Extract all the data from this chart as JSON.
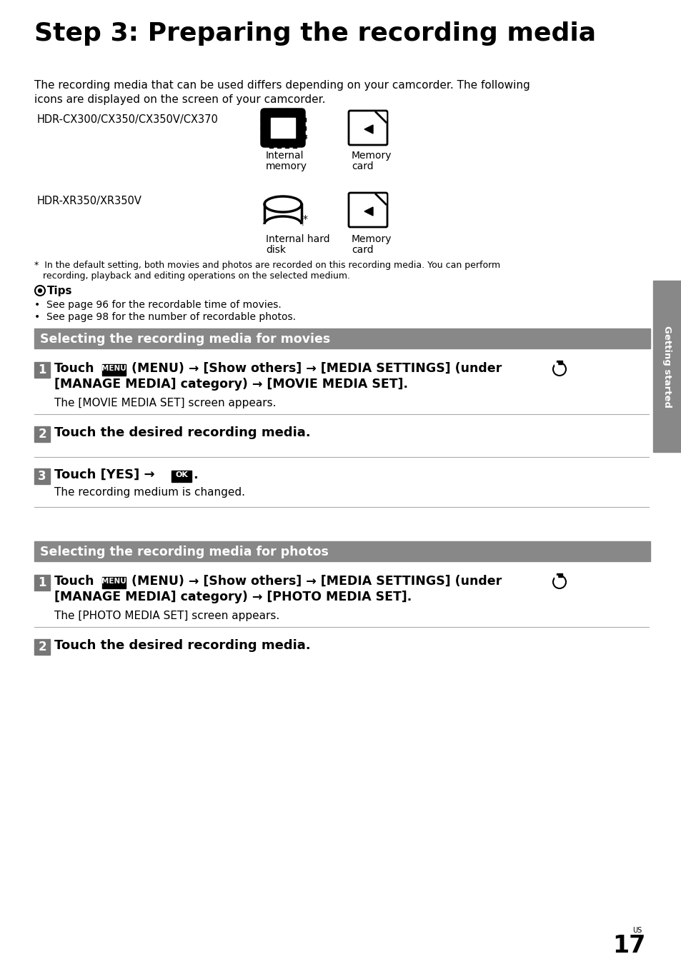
{
  "title": "Step 3: Preparing the recording media",
  "bg_color": "#ffffff",
  "sidebar_color": "#888888",
  "header_bg": "#888888",
  "header_text_color": "#ffffff",
  "body_text_color": "#000000",
  "page_number": "17",
  "sidebar_label": "Getting started",
  "intro1": "The recording media that can be used differs depending on your camcorder. The following",
  "intro2": "icons are displayed on the screen of your camcorder.",
  "hdr1_label": "HDR-CX300/CX350/CX350V/CX370",
  "hdr2_label": "HDR-XR350/XR350V",
  "icon1_label1": "Internal",
  "icon1_label2": "memory",
  "icon2_label1": "Memory",
  "icon2_label2": "card",
  "icon3_label1": "Internal hard",
  "icon3_label2": "disk",
  "footnote1": "*  In the default setting, both movies and photos are recorded on this recording media. You can perform",
  "footnote2": "recording, playback and editing operations on the selected medium.",
  "tips_title": "Tips",
  "tip1": "•  See page 96 for the recordable time of movies.",
  "tip2": "•  See page 98 for the number of recordable photos.",
  "section1": "Selecting the recording media for movies",
  "section2": "Selecting the recording media for photos",
  "s1_step1_line1": "Touch  (MENU) → [Show others] → [MEDIA SETTINGS] (under",
  "s1_step1_line2": "[MANAGE MEDIA] category) → [MOVIE MEDIA SET].",
  "s1_step1_sub": "The [MOVIE MEDIA SET] screen appears.",
  "s1_step2": "Touch the desired recording media.",
  "s1_step3_pre": "Touch [YES] →",
  "s1_step3_post": ".",
  "s1_step3_sub": "The recording medium is changed.",
  "s2_step1_line1": "Touch  (MENU) → [Show others] → [MEDIA SETTINGS] (under",
  "s2_step1_line2": "[MANAGE MEDIA] category) → [PHOTO MEDIA SET].",
  "s2_step1_sub": "The [PHOTO MEDIA SET] screen appears.",
  "s2_step2": "Touch the desired recording media."
}
